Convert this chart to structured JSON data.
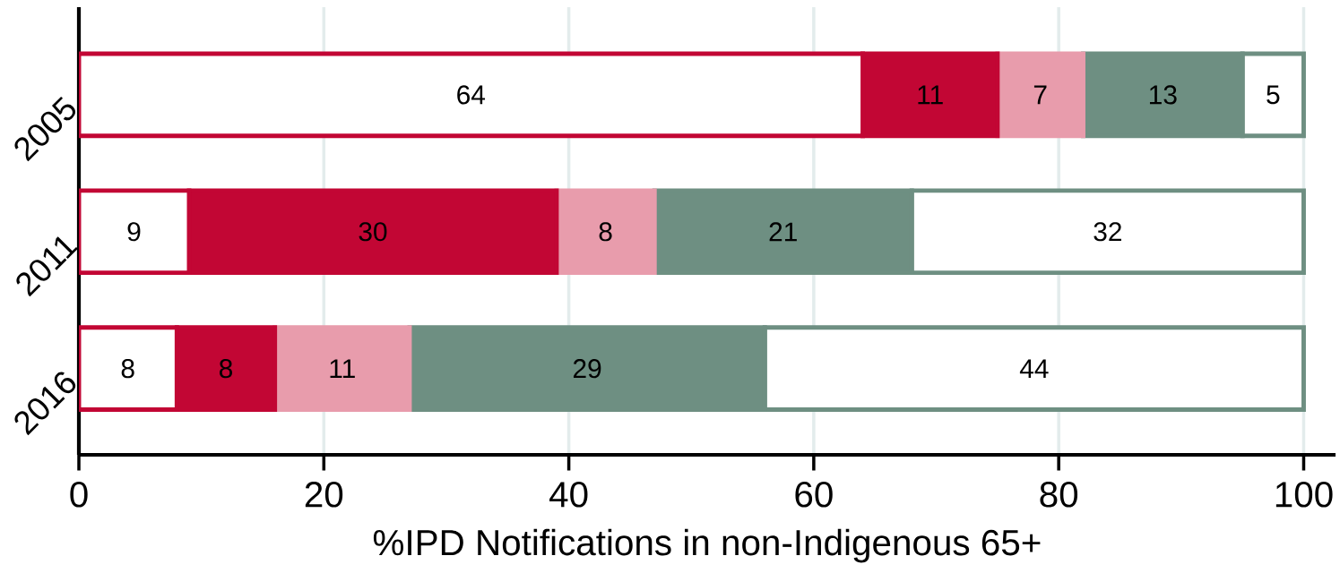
{
  "chart_data": {
    "type": "bar",
    "orientation": "horizontal",
    "stacked": true,
    "xlabel": "%IPD Notifications in non-Indigenous 65+",
    "categories": [
      "2005",
      "2011",
      "2016"
    ],
    "series": [
      {
        "color": "#ffffff",
        "values": [
          64,
          9,
          8
        ]
      },
      {
        "color": "#c20634",
        "values": [
          11,
          30,
          8
        ]
      },
      {
        "color": "#e89cac",
        "values": [
          7,
          8,
          11
        ]
      },
      {
        "color": "#6e8f82",
        "values": [
          13,
          21,
          29
        ]
      },
      {
        "color": "#ffffff",
        "values": [
          5,
          32,
          44
        ]
      }
    ],
    "xlim": [
      0,
      102.6
    ],
    "xticks": [
      0,
      20,
      40,
      60,
      80,
      100
    ],
    "grid": "x",
    "data_labels": true
  }
}
